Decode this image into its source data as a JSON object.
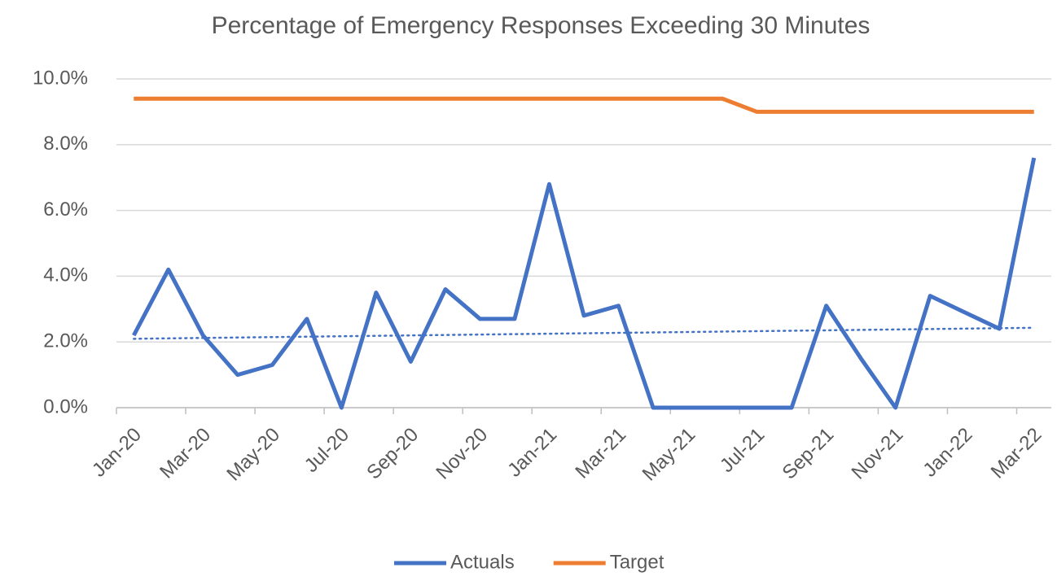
{
  "chart_data": {
    "type": "line",
    "title": "Percentage of Emergency Responses Exceeding 30 Minutes",
    "categories": [
      "Jan-20",
      null,
      "Mar-20",
      null,
      "May-20",
      null,
      "Jul-20",
      null,
      "Sep-20",
      null,
      "Nov-20",
      null,
      "Jan-21",
      null,
      "Mar-21",
      null,
      "May-21",
      null,
      "Jul-21",
      null,
      "Sep-21",
      null,
      "Nov-21",
      null,
      "Jan-22",
      null,
      "Mar-22"
    ],
    "series": [
      {
        "name": "Actuals",
        "color": "#4472c4",
        "values": [
          2.2,
          4.2,
          2.2,
          1.0,
          1.3,
          2.7,
          0.0,
          3.5,
          1.4,
          3.6,
          2.7,
          2.7,
          6.8,
          2.8,
          3.1,
          0,
          0,
          0,
          0,
          0,
          3.1,
          1.5,
          0,
          3.4,
          2.9,
          2.4,
          7.6
        ],
        "trendline": true
      },
      {
        "name": "Target",
        "color": "#ed7d31",
        "values": [
          9.4,
          9.4,
          9.4,
          9.4,
          9.4,
          9.4,
          9.4,
          9.4,
          9.4,
          9.4,
          9.4,
          9.4,
          9.4,
          9.4,
          9.4,
          9.4,
          9.4,
          9.4,
          9.0,
          9.0,
          9.0,
          9.0,
          9.0,
          9.0,
          9.0,
          9.0,
          9.0
        ]
      }
    ],
    "ylim": [
      0,
      10
    ],
    "yticks": [
      {
        "value": 0,
        "label": "0.0%"
      },
      {
        "value": 2,
        "label": "2.0%"
      },
      {
        "value": 4,
        "label": "4.0%"
      },
      {
        "value": 6,
        "label": "6.0%"
      },
      {
        "value": 8,
        "label": "8.0%"
      },
      {
        "value": 10,
        "label": "10.0%"
      }
    ],
    "grid": true,
    "legend": "bottom"
  }
}
